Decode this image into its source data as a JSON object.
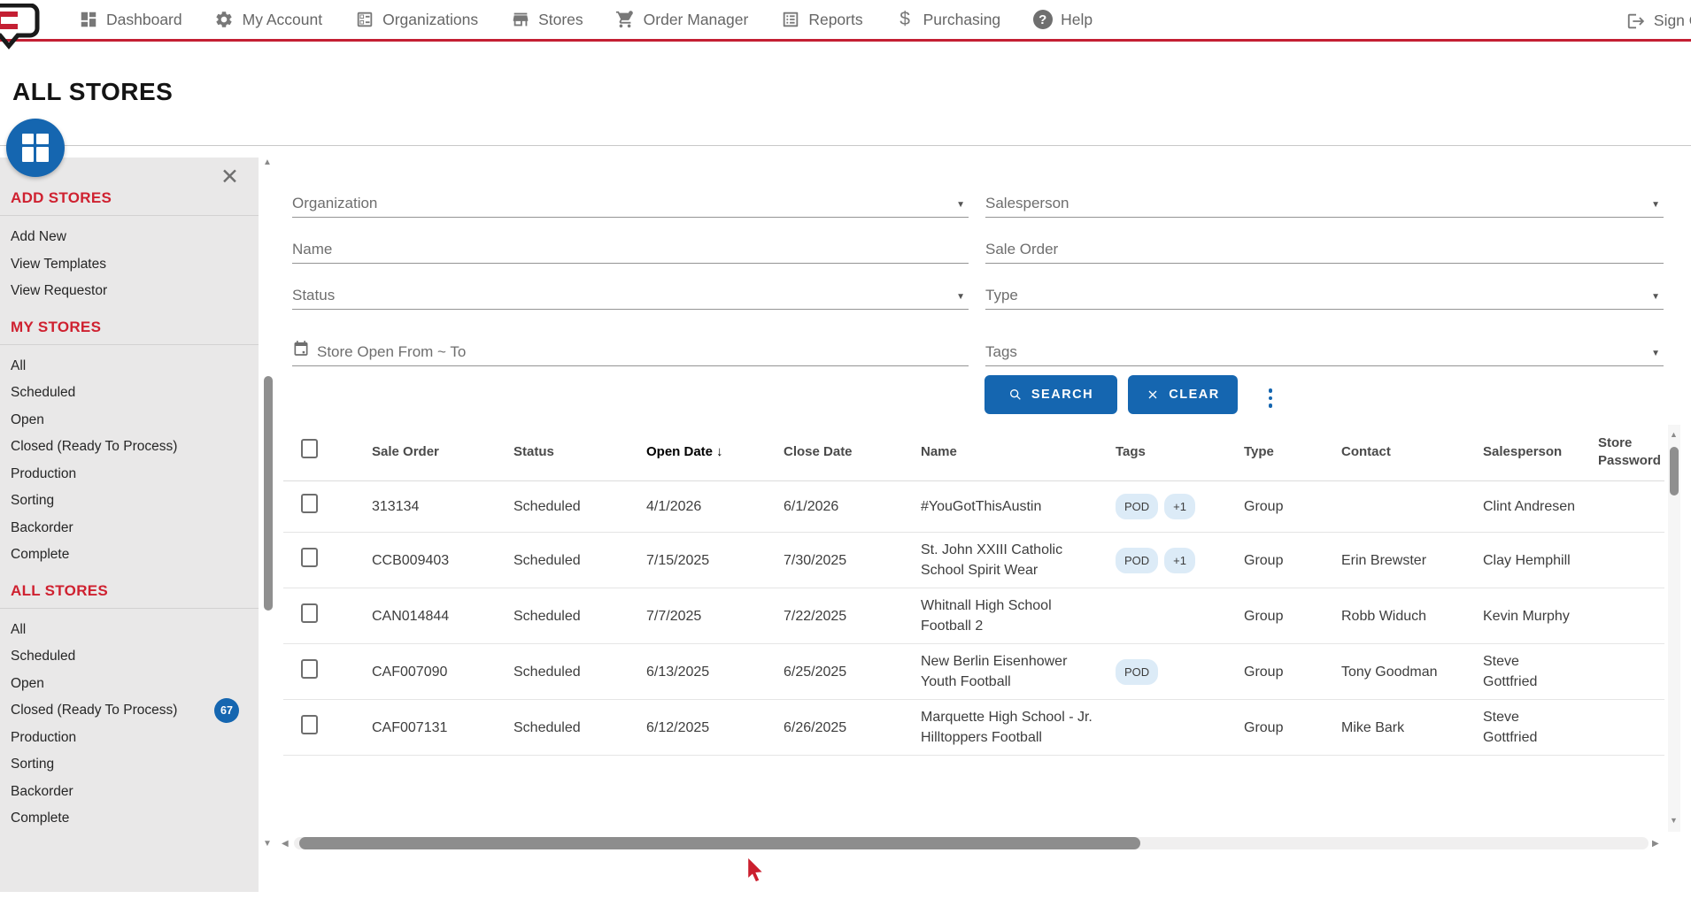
{
  "nav": {
    "items": [
      {
        "label": "Dashboard",
        "icon": "dashboard-icon"
      },
      {
        "label": "My Account",
        "icon": "gear-icon"
      },
      {
        "label": "Organizations",
        "icon": "organizations-icon"
      },
      {
        "label": "Stores",
        "icon": "storefront-icon"
      },
      {
        "label": "Order Manager",
        "icon": "order-cart-icon"
      },
      {
        "label": "Reports",
        "icon": "reports-icon"
      },
      {
        "label": "Purchasing",
        "icon": "dollar-icon"
      },
      {
        "label": "Help",
        "icon": "help-icon"
      }
    ],
    "sign_out": {
      "label": "Sign Out",
      "icon": "sign-out-icon"
    }
  },
  "page": {
    "title": "ALL STORES"
  },
  "sidebar": {
    "sections": [
      {
        "header": "ADD STORES",
        "items": [
          {
            "label": "Add New"
          },
          {
            "label": "View Templates"
          },
          {
            "label": "View Requestor"
          }
        ]
      },
      {
        "header": "MY STORES",
        "items": [
          {
            "label": "All"
          },
          {
            "label": "Scheduled"
          },
          {
            "label": "Open"
          },
          {
            "label": "Closed (Ready To Process)"
          },
          {
            "label": "Production"
          },
          {
            "label": "Sorting"
          },
          {
            "label": "Backorder"
          },
          {
            "label": "Complete"
          }
        ]
      },
      {
        "header": "ALL STORES",
        "items": [
          {
            "label": "All"
          },
          {
            "label": "Scheduled"
          },
          {
            "label": "Open"
          },
          {
            "label": "Closed (Ready To Process)",
            "badge": "67"
          },
          {
            "label": "Production"
          },
          {
            "label": "Sorting"
          },
          {
            "label": "Backorder"
          },
          {
            "label": "Complete"
          }
        ]
      }
    ]
  },
  "filters": {
    "organization_label": "Organization",
    "salesperson_label": "Salesperson",
    "name_label": "Name",
    "sale_order_label": "Sale Order",
    "status_label": "Status",
    "type_label": "Type",
    "store_open_label": "Store Open From ~ To",
    "tags_label": "Tags",
    "search_label": "SEARCH",
    "clear_label": "CLEAR"
  },
  "table": {
    "columns": [
      {
        "key": "sale_order",
        "label": "Sale Order"
      },
      {
        "key": "status",
        "label": "Status"
      },
      {
        "key": "open_date",
        "label": "Open Date",
        "sorted": "desc"
      },
      {
        "key": "close_date",
        "label": "Close Date"
      },
      {
        "key": "name",
        "label": "Name"
      },
      {
        "key": "tags",
        "label": "Tags"
      },
      {
        "key": "type",
        "label": "Type"
      },
      {
        "key": "contact",
        "label": "Contact"
      },
      {
        "key": "salesperson",
        "label": "Salesperson"
      },
      {
        "key": "store_password",
        "label": "Store Password"
      }
    ],
    "rows": [
      {
        "sale_order": "313134",
        "status": "Scheduled",
        "open_date": "4/1/2026",
        "close_date": "6/1/2026",
        "name": "#YouGotThisAustin",
        "tags": [
          "POD",
          "+1"
        ],
        "type": "Group",
        "contact": "",
        "salesperson": "Clint Andresen",
        "store_password": ""
      },
      {
        "sale_order": "CCB009403",
        "status": "Scheduled",
        "open_date": "7/15/2025",
        "close_date": "7/30/2025",
        "name": "St. John XXIII Catholic School Spirit Wear",
        "tags": [
          "POD",
          "+1"
        ],
        "type": "Group",
        "contact": "Erin Brewster",
        "salesperson": "Clay Hemphill",
        "store_password": ""
      },
      {
        "sale_order": "CAN014844",
        "status": "Scheduled",
        "open_date": "7/7/2025",
        "close_date": "7/22/2025",
        "name": "Whitnall High School Football 2",
        "tags": [],
        "type": "Group",
        "contact": "Robb Widuch",
        "salesperson": "Kevin Murphy",
        "store_password": ""
      },
      {
        "sale_order": "CAF007090",
        "status": "Scheduled",
        "open_date": "6/13/2025",
        "close_date": "6/25/2025",
        "name": "New Berlin Eisenhower Youth Football",
        "tags": [
          "POD"
        ],
        "type": "Group",
        "contact": "Tony Goodman",
        "salesperson": "Steve Gottfried",
        "store_password": ""
      },
      {
        "sale_order": "CAF007131",
        "status": "Scheduled",
        "open_date": "6/12/2025",
        "close_date": "6/26/2025",
        "name": "Marquette High School - Jr. Hilltoppers Football",
        "tags": [],
        "type": "Group",
        "contact": "Mike Bark",
        "salesperson": "Steve Gottfried",
        "store_password": ""
      }
    ]
  },
  "colors": {
    "accent_red": "#c41f33",
    "primary_blue": "#1566b0",
    "tag_bg": "#dcebf7",
    "sidebar_bg": "#e9e8e8"
  }
}
